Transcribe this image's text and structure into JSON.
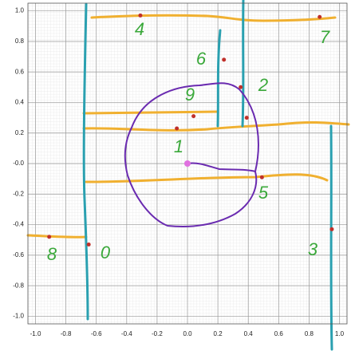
{
  "chart_data": {
    "type": "scatter",
    "xlim": [
      -1.05,
      1.05
    ],
    "ylim": [
      -1.05,
      1.05
    ],
    "xticks": [
      {
        "value": -1.0,
        "label": "-1.0"
      },
      -0.8,
      -0.6,
      -0.4,
      -0.2,
      {
        "value": 0,
        "label": "0.0"
      },
      0.2,
      0.4,
      0.6,
      0.8,
      {
        "value": 1.0,
        "label": "1.0"
      }
    ],
    "yticks": [
      {
        "value": -1.0,
        "label": "-1.0"
      },
      -0.8,
      -0.6,
      -0.4,
      -0.2,
      {
        "value": 0,
        "label": "-0.0"
      },
      0.2,
      0.4,
      0.6,
      0.8,
      {
        "value": 1.0,
        "label": "1.0"
      }
    ],
    "grid": true,
    "series": [
      {
        "color": "#c0302a",
        "x": [
          -0.31,
          0.87,
          0.24,
          0.35,
          0.04,
          -0.07,
          0.39,
          0.49,
          -0.91,
          -0.65,
          0.95
        ],
        "values": [
          0.97,
          0.96,
          0.68,
          0.5,
          0.31,
          0.23,
          0.3,
          -0.09,
          -0.48,
          -0.53,
          -0.43
        ]
      },
      {
        "color": "#e070e0",
        "x": [
          0
        ],
        "values": [
          0
        ]
      }
    ],
    "annotations": [
      "4",
      "7",
      "6",
      "2",
      "9",
      "1",
      "5",
      "8",
      "0",
      "3"
    ]
  }
}
